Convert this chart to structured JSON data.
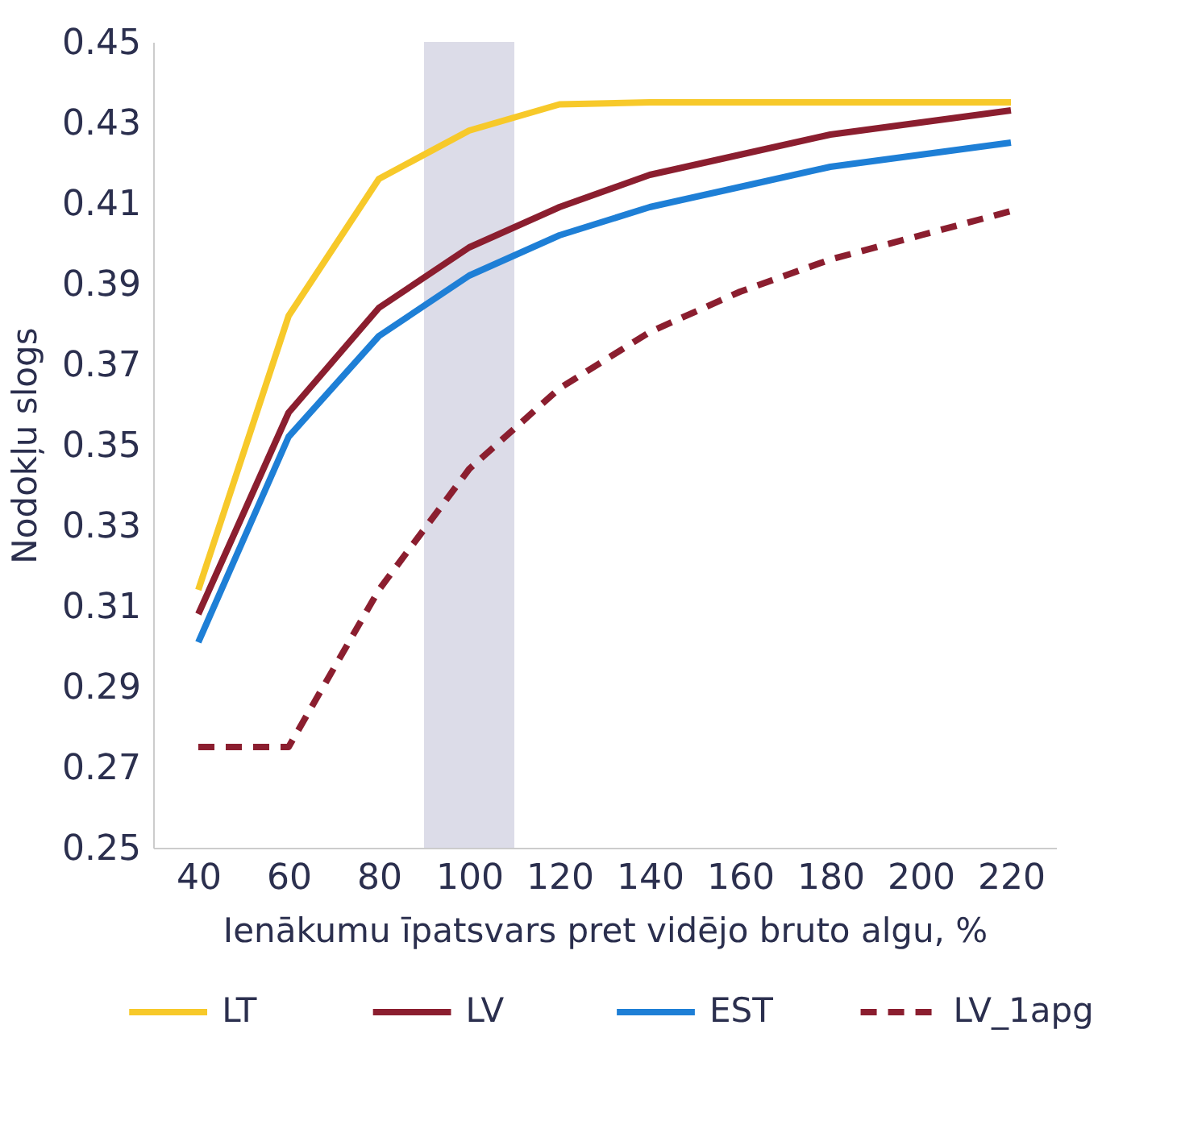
{
  "chart_data": {
    "type": "line",
    "xlabel": "Ienākumu īpatsvars pret vidējo bruto algu, %",
    "ylabel": "Nodokļu slogs",
    "x": [
      40,
      60,
      80,
      100,
      120,
      140,
      160,
      180,
      200,
      220
    ],
    "xlim": [
      30,
      230
    ],
    "xticks": [
      40,
      60,
      80,
      100,
      120,
      140,
      160,
      180,
      200,
      220
    ],
    "ylim": [
      0.25,
      0.45
    ],
    "yticks": [
      0.25,
      0.27,
      0.29,
      0.31,
      0.33,
      0.35,
      0.37,
      0.39,
      0.41,
      0.43,
      0.45
    ],
    "series": [
      {
        "name": "LT",
        "color": "#f7c92a",
        "line_style": "solid",
        "values": [
          0.314,
          0.382,
          0.416,
          0.428,
          0.4345,
          0.435,
          0.435,
          0.435,
          0.435,
          0.435
        ]
      },
      {
        "name": "LV",
        "color": "#8b1e2f",
        "line_style": "solid",
        "values": [
          0.308,
          0.358,
          0.384,
          0.399,
          0.409,
          0.417,
          0.422,
          0.427,
          0.43,
          0.433
        ]
      },
      {
        "name": "EST",
        "color": "#1e7fd6",
        "line_style": "solid",
        "values": [
          0.301,
          0.352,
          0.377,
          0.392,
          0.402,
          0.409,
          0.414,
          0.419,
          0.422,
          0.425
        ]
      },
      {
        "name": "LV_1apg",
        "color": "#8b1e2f",
        "line_style": "dashed",
        "values": [
          0.275,
          0.275,
          0.314,
          0.344,
          0.364,
          0.378,
          0.388,
          0.396,
          0.402,
          0.408
        ]
      }
    ],
    "bands": [
      {
        "axis": "x",
        "from": 90,
        "to": 110,
        "color": "#dcdce8"
      }
    ],
    "grid": false,
    "legend": "bottom",
    "marker": "none"
  }
}
